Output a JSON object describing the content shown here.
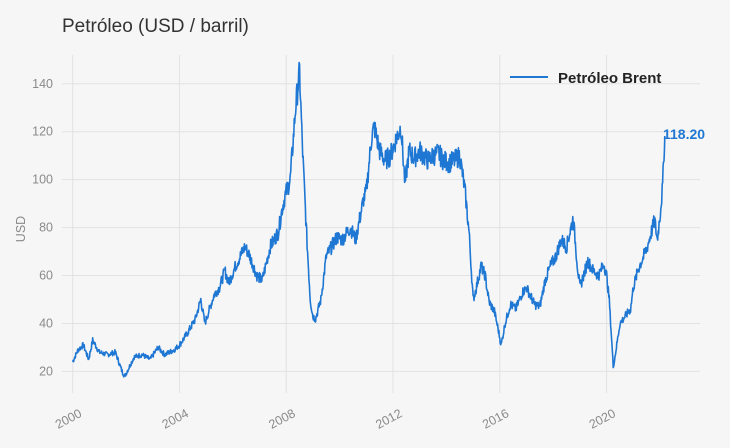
{
  "colors": {
    "background": "#f6f6f6",
    "series": "#1f77d4",
    "grid": "#e2e2e2",
    "tick_text": "#8a8a8a"
  },
  "chart_data": {
    "type": "line",
    "title": "Petróleo (USD / barril)",
    "xlabel": "",
    "ylabel": "USD",
    "xlim": [
      1999.6,
      2023.5
    ],
    "ylim": [
      11,
      152
    ],
    "x_ticks": [
      2000,
      2004,
      2008,
      2012,
      2016,
      2020
    ],
    "x_tick_labels": [
      "2000",
      "2004",
      "2008",
      "2012",
      "2016",
      "2020"
    ],
    "y_ticks": [
      20,
      40,
      60,
      80,
      100,
      120,
      140
    ],
    "y_tick_labels": [
      "20",
      "40",
      "60",
      "80",
      "100",
      "120",
      "140"
    ],
    "grid": true,
    "legend_position": "top-right",
    "last_value_label": "118.20",
    "series": [
      {
        "name": "Petróleo Brent",
        "x": [
          2000.0,
          2000.2,
          2000.4,
          2000.6,
          2000.75,
          2001.0,
          2001.3,
          2001.6,
          2001.85,
          2001.95,
          2002.3,
          2002.6,
          2002.9,
          2003.2,
          2003.45,
          2003.8,
          2004.0,
          2004.3,
          2004.6,
          2004.8,
          2004.95,
          2005.3,
          2005.5,
          2005.7,
          2005.85,
          2006.1,
          2006.45,
          2006.6,
          2006.9,
          2007.1,
          2007.4,
          2007.7,
          2007.85,
          2007.95,
          2008.15,
          2008.35,
          2008.5,
          2008.6,
          2008.75,
          2008.9,
          2009.0,
          2009.1,
          2009.3,
          2009.5,
          2009.7,
          2009.9,
          2010.1,
          2010.4,
          2010.6,
          2010.9,
          2011.0,
          2011.2,
          2011.3,
          2011.5,
          2011.7,
          2011.9,
          2012.15,
          2012.3,
          2012.45,
          2012.6,
          2012.8,
          2013.0,
          2013.3,
          2013.5,
          2013.7,
          2013.9,
          2014.1,
          2014.3,
          2014.5,
          2014.7,
          2014.85,
          2015.0,
          2015.1,
          2015.3,
          2015.45,
          2015.6,
          2015.8,
          2015.95,
          2016.05,
          2016.2,
          2016.4,
          2016.6,
          2016.85,
          2017.0,
          2017.3,
          2017.5,
          2017.7,
          2017.9,
          2018.1,
          2018.3,
          2018.5,
          2018.75,
          2018.9,
          2019.0,
          2019.3,
          2019.5,
          2019.7,
          2019.9,
          2020.0,
          2020.1,
          2020.25,
          2020.3,
          2020.5,
          2020.7,
          2020.9,
          2021.0,
          2021.2,
          2021.5,
          2021.8,
          2021.9,
          2022.0,
          2022.1,
          2022.15,
          2022.18
        ],
        "values": [
          24,
          29,
          31,
          25,
          33,
          28,
          27,
          28,
          20,
          18,
          26,
          27,
          25,
          30,
          27,
          29,
          31,
          36,
          42,
          50,
          40,
          52,
          55,
          62,
          57,
          64,
          72,
          69,
          60,
          58,
          72,
          78,
          88,
          93,
          100,
          130,
          145,
          115,
          80,
          50,
          43,
          42,
          50,
          68,
          72,
          76,
          75,
          80,
          75,
          92,
          95,
          118,
          122,
          112,
          108,
          110,
          118,
          122,
          98,
          112,
          109,
          112,
          108,
          110,
          111,
          108,
          107,
          108,
          110,
          95,
          78,
          50,
          54,
          64,
          60,
          49,
          45,
          37,
          31,
          40,
          48,
          46,
          53,
          55,
          48,
          47,
          58,
          64,
          68,
          75,
          72,
          84,
          65,
          55,
          66,
          62,
          60,
          65,
          60,
          50,
          22,
          25,
          40,
          43,
          46,
          55,
          63,
          71,
          83,
          75,
          85,
          97,
          112,
          118.2
        ]
      }
    ]
  }
}
